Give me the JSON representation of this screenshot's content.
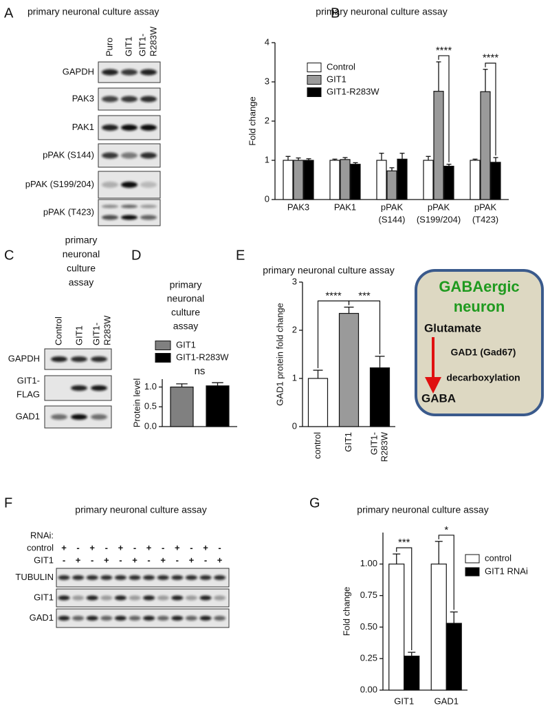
{
  "panel_labels": [
    "A",
    "B",
    "C",
    "D",
    "E",
    "F",
    "G"
  ],
  "blot_a": {
    "title": "primary neuronal culture assay",
    "lanes": [
      [
        "Puro"
      ],
      [
        "GIT1"
      ],
      [
        "GIT1-",
        "R283W"
      ]
    ],
    "rows": [
      [
        "GAPDH"
      ],
      [
        "PAK3"
      ],
      [
        "PAK1"
      ],
      [
        "pPAK (S144)"
      ],
      [
        "pPAK (S199/204)"
      ],
      [
        "pPAK (T423)"
      ]
    ]
  },
  "blot_c": {
    "title": [
      "primary",
      "neuronal",
      "culture",
      "assay"
    ],
    "lanes": [
      [
        "Control"
      ],
      [
        "GIT1"
      ],
      [
        "GIT1-",
        "R283W"
      ]
    ],
    "rows": [
      [
        "GAPDH"
      ],
      [
        "GIT1-",
        "FLAG"
      ],
      [
        "GAD1"
      ]
    ]
  },
  "blot_f": {
    "title": "primary neuronal culture assay",
    "condition_header": "RNAi:",
    "conditions": [
      {
        "name": "control",
        "lanes": [
          "+",
          "-",
          "+",
          "-",
          "+",
          "-",
          "+",
          "-",
          "+",
          "-",
          "+",
          "-"
        ]
      },
      {
        "name": "GIT1",
        "lanes": [
          "-",
          "+",
          "-",
          "+",
          "-",
          "+",
          "-",
          "+",
          "-",
          "+",
          "-",
          "+"
        ]
      }
    ],
    "rows": [
      [
        "TUBULIN"
      ],
      [
        "GIT1"
      ],
      [
        "GAD1"
      ]
    ]
  },
  "diagram": {
    "title": [
      "GABAergic",
      "neuron"
    ],
    "substrate": "Glutamate",
    "enzyme": "GAD1 (Gad67)",
    "reaction": "decarboxylation",
    "product": "GABA"
  },
  "chart_data": [
    {
      "type": "bar",
      "title": "primary neuronal culture assay",
      "y_label": "Fold change",
      "categories": [
        [
          "PAK3"
        ],
        [
          "PAK1"
        ],
        [
          "pPAK",
          "(S144)"
        ],
        [
          "pPAK",
          "(S199/204)"
        ],
        [
          "pPAK",
          "(T423)"
        ]
      ],
      "series": [
        {
          "name": "Control",
          "color": "#ffffff",
          "values": [
            1,
            1,
            1,
            1,
            1
          ],
          "errors": [
            0.1,
            0.03,
            0.18,
            0.1,
            0.03
          ]
        },
        {
          "name": "GIT1",
          "color": "#9a9a9a",
          "values": [
            1,
            1.02,
            0.73,
            2.76,
            2.75
          ],
          "errors": [
            0.06,
            0.05,
            0.08,
            0.75,
            0.57
          ]
        },
        {
          "name": "GIT1-R283W",
          "color": "#000000",
          "values": [
            1,
            0.9,
            1.03,
            0.85,
            0.95
          ],
          "errors": [
            0.04,
            0.04,
            0.15,
            0.05,
            0.12
          ]
        }
      ],
      "ylim": [
        0,
        4
      ],
      "yticks": [
        0,
        1,
        2,
        3,
        4
      ],
      "legend": "upper-left",
      "annotations": [
        {
          "text": "****",
          "category": 3,
          "series": [
            1,
            2
          ]
        },
        {
          "text": "****",
          "category": 4,
          "series": [
            1,
            2
          ]
        }
      ]
    },
    {
      "type": "bar",
      "title": [
        "primary",
        "neuronal",
        "culture",
        "assay"
      ],
      "y_label": "Protein level",
      "categories": [
        null
      ],
      "series": [
        {
          "name": "GIT1",
          "color": "#808080",
          "values": [
            1.0
          ],
          "errors": [
            0.08
          ]
        },
        {
          "name": "GIT1-R283W",
          "color": "#000000",
          "values": [
            1.03
          ],
          "errors": [
            0.08
          ]
        }
      ],
      "ylim": [
        0,
        1.2
      ],
      "yticks": [
        {
          "value": 0,
          "label": "0.0"
        },
        {
          "value": 0.5,
          "label": "0.5"
        },
        {
          "value": 1,
          "label": "1.0"
        }
      ],
      "legend": "top",
      "annotations": [
        {
          "text": "ns",
          "category": 0,
          "series": [
            0,
            1
          ],
          "bracket": false
        }
      ]
    },
    {
      "type": "bar",
      "title": "primary neuronal culture assay",
      "y_label": "GAD1 protein fold change",
      "categories": [
        [
          "control"
        ],
        [
          "GIT1"
        ],
        [
          "GIT1-",
          "R283W"
        ]
      ],
      "values": [
        1,
        2.35,
        1.22
      ],
      "errors": [
        0.17,
        0.13,
        0.24
      ],
      "colors": [
        "#ffffff",
        "#9a9a9a",
        "#000000"
      ],
      "ylim": [
        0,
        3
      ],
      "yticks": [
        0,
        1,
        2,
        3
      ],
      "annotations": [
        {
          "text": "****",
          "categories": [
            0,
            1
          ]
        },
        {
          "text": "***",
          "categories": [
            1,
            2
          ]
        }
      ]
    },
    {
      "type": "bar",
      "title": "primary neuronal culture assay",
      "y_label": "Fold change",
      "categories": [
        [
          "GIT1"
        ],
        [
          "GAD1"
        ]
      ],
      "series": [
        {
          "name": "control",
          "color": "#ffffff",
          "values": [
            1,
            1
          ],
          "errors": [
            0.08,
            0.18
          ]
        },
        {
          "name": "GIT1 RNAi",
          "color": "#000000",
          "values": [
            0.27,
            0.53
          ],
          "errors": [
            0.03,
            0.09
          ]
        }
      ],
      "ylim": [
        0,
        1.25
      ],
      "yticks": [
        {
          "value": 0,
          "label": "0.00"
        },
        {
          "value": 0.25,
          "label": "0.25"
        },
        {
          "value": 0.5,
          "label": "0.50"
        },
        {
          "value": 0.75,
          "label": "0.75"
        },
        {
          "value": 1,
          "label": "1.00"
        }
      ],
      "legend": "upper-right",
      "annotations": [
        {
          "text": "***",
          "category": 0,
          "series": [
            0,
            1
          ]
        },
        {
          "text": "*",
          "category": 1,
          "series": [
            0,
            1
          ]
        }
      ]
    }
  ]
}
